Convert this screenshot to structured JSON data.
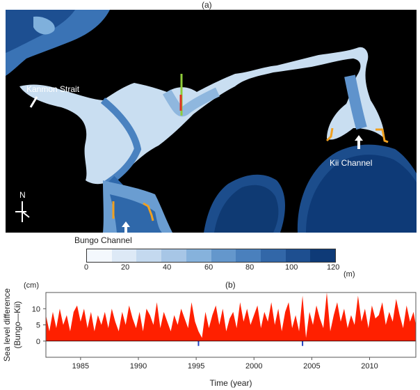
{
  "panel_a": {
    "label": "(a)",
    "places": {
      "kanmon": "Kanmon Strait",
      "kii": "Kii Channel",
      "bungo": "Bungo Channel",
      "north": "N"
    },
    "colorbar": {
      "ticks": [
        "0",
        "20",
        "40",
        "60",
        "80",
        "100",
        "120"
      ],
      "unit": "(m)",
      "colors": [
        "#f4f8fd",
        "#dde9f6",
        "#c4d9ef",
        "#a7c6e6",
        "#86b2dc",
        "#6497cc",
        "#4a80bd",
        "#3267a8",
        "#1e4f90",
        "#0e3a77"
      ]
    }
  },
  "panel_b": {
    "label": "(b)",
    "unit": "(cm)"
  },
  "chart_data": {
    "type": "area",
    "ylabel": "Sea level difference (Bungo—Kii)",
    "xlabel": "Time (year)",
    "xlim": [
      1982,
      2014
    ],
    "ylim": [
      -5,
      15
    ],
    "xticks": [
      1985,
      1990,
      1995,
      2000,
      2005,
      2010
    ],
    "yticks": [
      0,
      5,
      10
    ],
    "series": [
      {
        "color": "#ff2000",
        "x": [
          1982.0,
          1982.3,
          1982.6,
          1982.9,
          1983.2,
          1983.5,
          1983.8,
          1984.1,
          1984.4,
          1984.7,
          1985.0,
          1985.3,
          1985.6,
          1985.9,
          1986.2,
          1986.5,
          1986.8,
          1987.1,
          1987.4,
          1987.7,
          1988.0,
          1988.3,
          1988.6,
          1988.9,
          1989.2,
          1989.5,
          1989.8,
          1990.1,
          1990.4,
          1990.7,
          1991.0,
          1991.3,
          1991.6,
          1991.9,
          1992.2,
          1992.5,
          1992.8,
          1993.1,
          1993.4,
          1993.7,
          1994.0,
          1994.3,
          1994.6,
          1994.9,
          1995.2,
          1995.5,
          1995.8,
          1996.1,
          1996.4,
          1996.7,
          1997.0,
          1997.3,
          1997.6,
          1997.9,
          1998.2,
          1998.5,
          1998.8,
          1999.1,
          1999.4,
          1999.7,
          2000.0,
          2000.3,
          2000.6,
          2000.9,
          2001.2,
          2001.5,
          2001.8,
          2002.1,
          2002.4,
          2002.7,
          2003.0,
          2003.3,
          2003.6,
          2003.9,
          2004.2,
          2004.5,
          2004.8,
          2005.1,
          2005.4,
          2005.7,
          2006.0,
          2006.3,
          2006.6,
          2006.9,
          2007.2,
          2007.5,
          2007.8,
          2008.1,
          2008.4,
          2008.7,
          2009.0,
          2009.3,
          2009.6,
          2009.9,
          2010.2,
          2010.5,
          2010.8,
          2011.1,
          2011.4,
          2011.7,
          2012.0,
          2012.3,
          2012.6,
          2012.9,
          2013.2,
          2013.5,
          2013.8,
          2014.0
        ],
        "values": [
          8,
          3,
          9,
          4,
          10,
          5,
          8,
          3,
          9,
          11,
          6,
          10,
          4,
          9,
          3,
          8,
          5,
          9,
          4,
          10,
          6,
          3,
          9,
          5,
          11,
          7,
          4,
          9,
          3,
          10,
          8,
          5,
          12,
          4,
          9,
          6,
          3,
          8,
          5,
          10,
          7,
          4,
          12,
          6,
          3,
          1,
          9,
          4,
          8,
          11,
          5,
          10,
          3,
          7,
          9,
          4,
          12,
          6,
          10,
          5,
          8,
          11,
          4,
          9,
          6,
          12,
          5,
          10,
          3,
          9,
          12,
          4,
          8,
          3,
          14,
          1,
          9,
          5,
          11,
          7,
          4,
          15,
          3,
          8,
          12,
          6,
          10,
          4,
          8,
          5,
          14,
          6,
          10,
          4,
          11,
          7,
          8,
          12,
          5,
          9,
          6,
          13,
          8,
          4,
          11,
          6,
          9,
          5
        ]
      }
    ],
    "negative_dips": [
      {
        "x": 1995.2,
        "value": -1.5,
        "color": "#2040c0"
      },
      {
        "x": 2004.2,
        "value": -1.5,
        "color": "#2040c0"
      }
    ]
  }
}
